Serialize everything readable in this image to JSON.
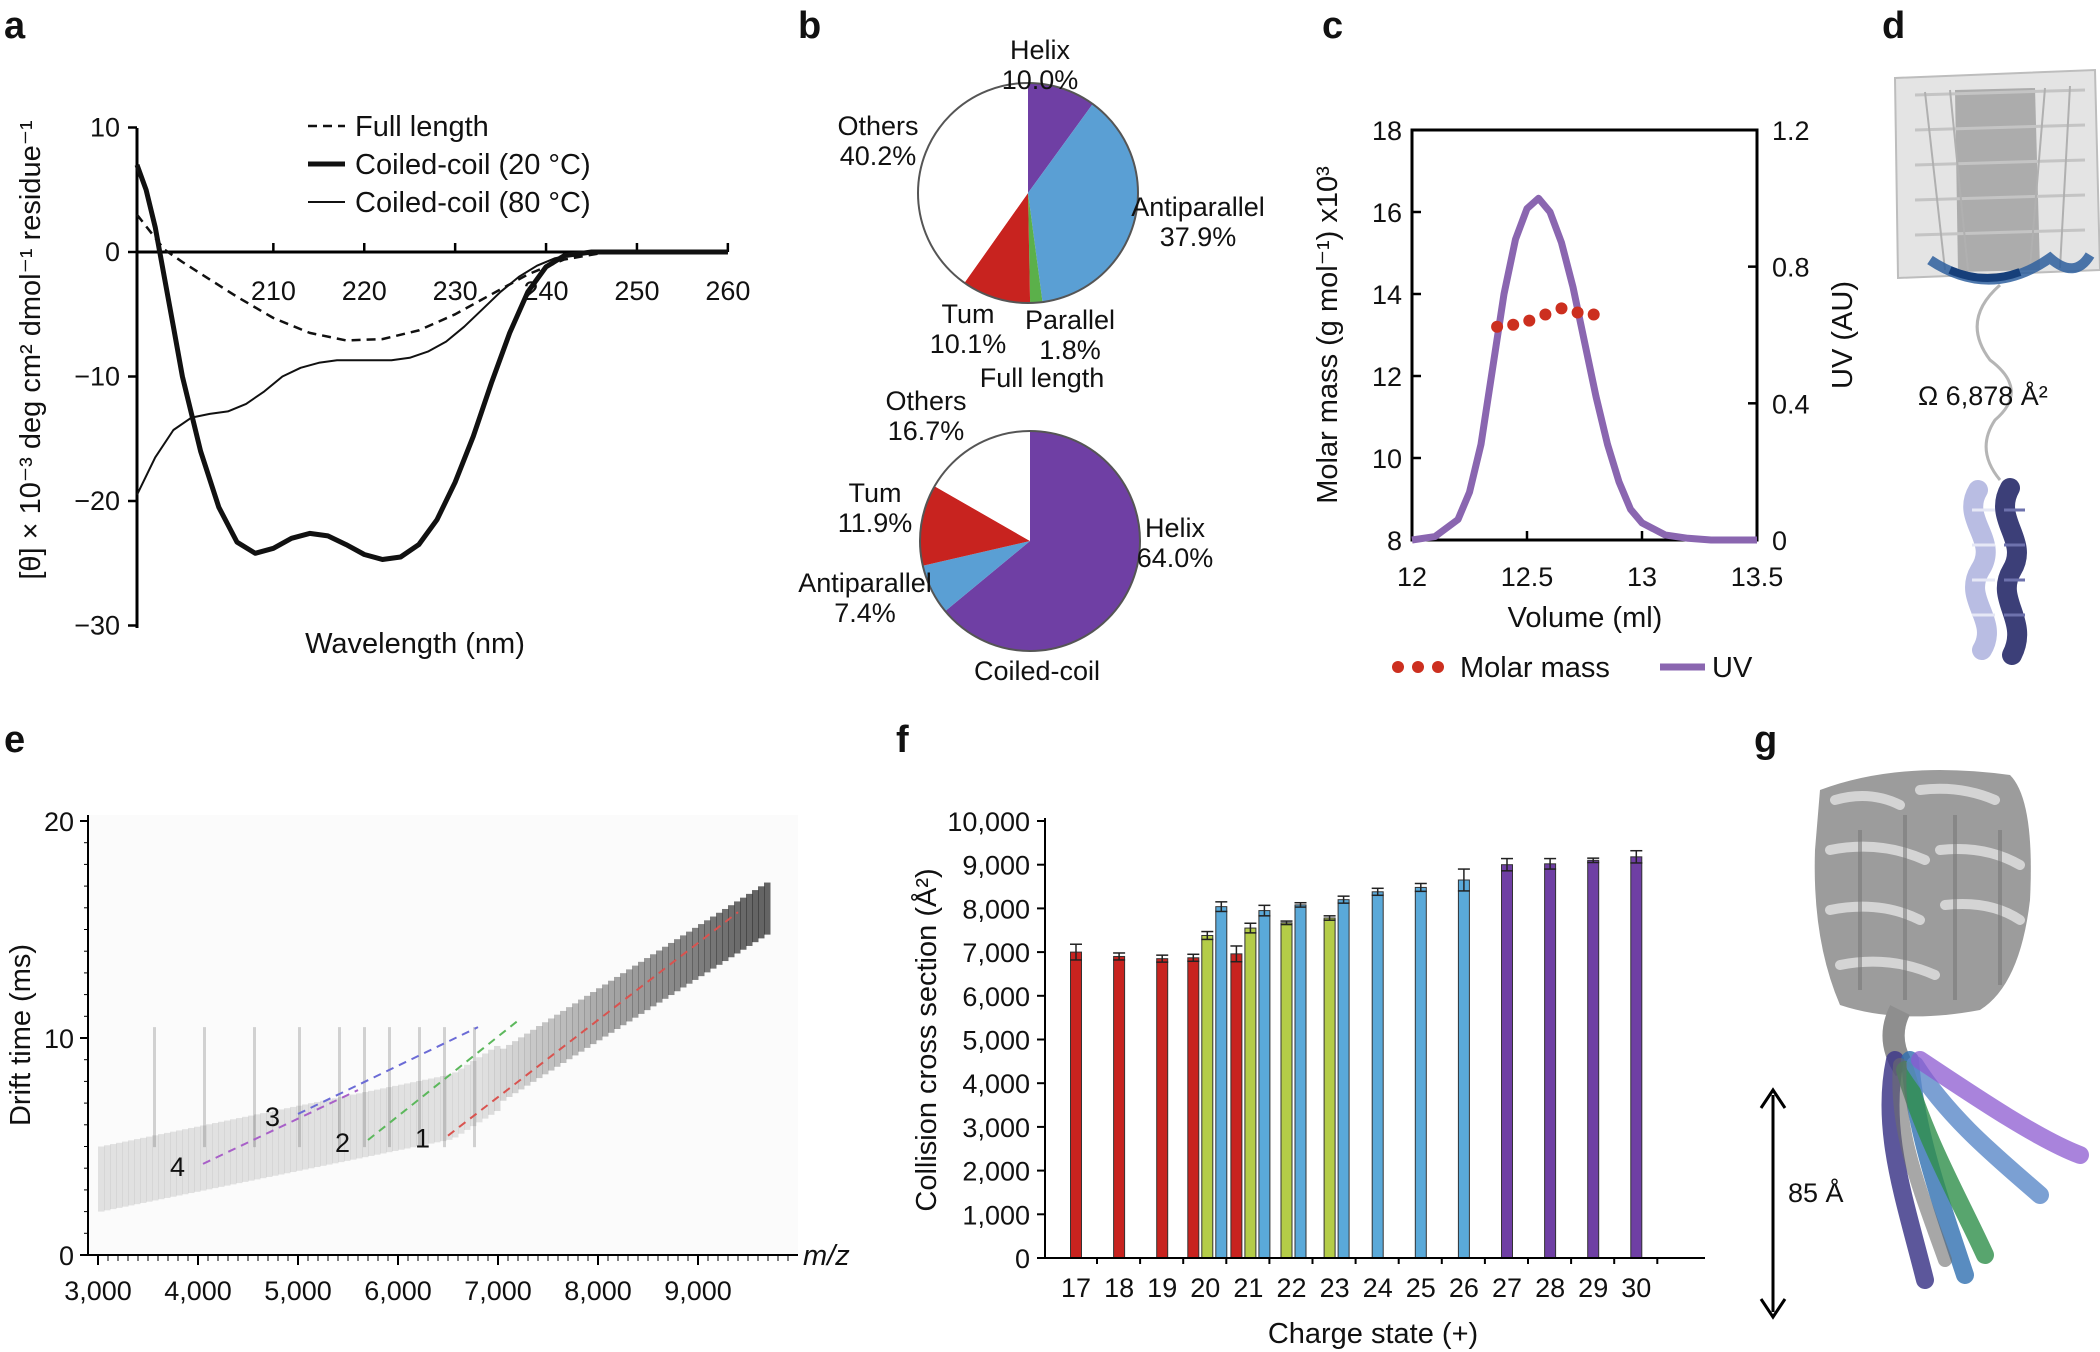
{
  "panels": {
    "a": "a",
    "b": "b",
    "c": "c",
    "d": "d",
    "e": "e",
    "f": "f",
    "g": "g"
  },
  "colors": {
    "helix": "#6f3fa4",
    "antiparallel": "#5a9fd4",
    "parallel": "#5bb04a",
    "turn": "#c8231f",
    "uv": "#8a66b0",
    "molar": "#cc2f1f",
    "lime": "#b4cc48"
  },
  "chart_data": [
    {
      "panel": "a",
      "type": "line",
      "title": "",
      "xlabel": "Wavelength (nm)",
      "ylabel": "[θ] × 10⁻³ deg cm² dmol⁻¹ residue⁻¹",
      "xlim": [
        195,
        260
      ],
      "ylim": [
        -30,
        10
      ],
      "xticks": [
        "210",
        "220",
        "230",
        "240",
        "250",
        "260"
      ],
      "yticks": [
        "10",
        "0",
        "−10",
        "−20",
        "−30"
      ],
      "series": [
        {
          "name": "Full length",
          "style": "dashed",
          "x": [
            195,
            198,
            200,
            203,
            206,
            210,
            214,
            218,
            222,
            226,
            230,
            234,
            238,
            242,
            246,
            250,
            255,
            260
          ],
          "y": [
            3,
            0.2,
            -0.8,
            -2.2,
            -3.6,
            -5.3,
            -6.5,
            -7.1,
            -7.0,
            -6.3,
            -5.0,
            -3.4,
            -1.8,
            -0.6,
            -0.1,
            0,
            0,
            0
          ]
        },
        {
          "name": "Coiled-coil (20 °C)",
          "style": "thick",
          "x": [
            195,
            196,
            197,
            198,
            199,
            200,
            202,
            204,
            206,
            208,
            210,
            212,
            214,
            216,
            218,
            220,
            222,
            224,
            226,
            228,
            230,
            232,
            234,
            236,
            238,
            240,
            242,
            245,
            248,
            252,
            256,
            260
          ],
          "y": [
            7,
            5,
            2,
            -2,
            -6,
            -10,
            -16,
            -20.5,
            -23.3,
            -24.2,
            -23.8,
            -23.0,
            -22.6,
            -22.8,
            -23.5,
            -24.3,
            -24.7,
            -24.5,
            -23.5,
            -21.5,
            -18.5,
            -14.8,
            -10.5,
            -6.5,
            -3.2,
            -1.2,
            -0.3,
            0,
            0,
            0,
            0,
            0
          ]
        },
        {
          "name": "Coiled-coil (80 °C)",
          "style": "thin",
          "x": [
            195,
            197,
            199,
            201,
            203,
            205,
            207,
            209,
            211,
            213,
            215,
            217,
            219,
            221,
            223,
            225,
            227,
            229,
            231,
            233,
            235,
            237,
            239,
            241,
            243,
            245,
            248,
            252,
            256,
            260
          ],
          "y": [
            -19.5,
            -16.5,
            -14.3,
            -13.3,
            -13.0,
            -12.8,
            -12.2,
            -11.2,
            -10.0,
            -9.3,
            -8.9,
            -8.7,
            -8.7,
            -8.7,
            -8.7,
            -8.5,
            -8.0,
            -7.2,
            -6.0,
            -4.6,
            -3.2,
            -2.0,
            -1.1,
            -0.5,
            -0.2,
            0,
            0,
            0,
            0,
            0
          ]
        }
      ]
    },
    {
      "panel": "b-top",
      "type": "pie",
      "title": "Full length",
      "slices": [
        {
          "label": "Helix",
          "value": 10.0,
          "pct": "10.0%",
          "color": "#6f3fa4"
        },
        {
          "label": "Antiparallel",
          "value": 37.9,
          "pct": "37.9%",
          "color": "#5a9fd4"
        },
        {
          "label": "Parallel",
          "value": 1.8,
          "pct": "1.8%",
          "color": "#5bb04a"
        },
        {
          "label": "Tum",
          "value": 10.1,
          "pct": "10.1%",
          "color": "#c8231f"
        },
        {
          "label": "Others",
          "value": 40.2,
          "pct": "40.2%",
          "color": "#ffffff"
        }
      ]
    },
    {
      "panel": "b-bottom",
      "type": "pie",
      "title": "Coiled-coil",
      "slices": [
        {
          "label": "Helix",
          "value": 64.0,
          "pct": "64.0%",
          "color": "#6f3fa4"
        },
        {
          "label": "Antiparallel",
          "value": 7.4,
          "pct": "7.4%",
          "color": "#5a9fd4"
        },
        {
          "label": "Tum",
          "value": 11.9,
          "pct": "11.9%",
          "color": "#c8231f"
        },
        {
          "label": "Others",
          "value": 16.7,
          "pct": "16.7%",
          "color": "#ffffff"
        }
      ]
    },
    {
      "panel": "c",
      "type": "line",
      "xlabel": "Volume (ml)",
      "ylabel": "Molar mass (g mol⁻¹) x10³",
      "y2label": "UV (AU)",
      "xlim": [
        12,
        13.5
      ],
      "ylim": [
        8,
        18
      ],
      "y2lim": [
        0,
        1.2
      ],
      "xticks": [
        "12",
        "12.5",
        "13",
        "13.5"
      ],
      "yticks": [
        "8",
        "10",
        "12",
        "14",
        "16",
        "18"
      ],
      "y2ticks": [
        "0",
        "0.4",
        "0.8",
        "1.2"
      ],
      "uv": {
        "name": "UV",
        "x": [
          12.0,
          12.1,
          12.2,
          12.25,
          12.3,
          12.35,
          12.4,
          12.45,
          12.5,
          12.55,
          12.6,
          12.65,
          12.7,
          12.75,
          12.8,
          12.85,
          12.9,
          12.95,
          13.0,
          13.1,
          13.2,
          13.3,
          13.5
        ],
        "y": [
          0.0,
          0.01,
          0.06,
          0.14,
          0.28,
          0.5,
          0.72,
          0.88,
          0.97,
          1.0,
          0.96,
          0.87,
          0.74,
          0.58,
          0.42,
          0.28,
          0.17,
          0.09,
          0.05,
          0.015,
          0.005,
          0.0,
          0.0
        ]
      },
      "molar": {
        "name": "Molar mass",
        "x": [
          12.37,
          12.44,
          12.51,
          12.58,
          12.65,
          12.72,
          12.79
        ],
        "y": [
          13.2,
          13.25,
          13.35,
          13.5,
          13.65,
          13.55,
          13.5
        ]
      }
    },
    {
      "panel": "e",
      "type": "heatmap",
      "xlabel": "m/z",
      "ylabel": "Drift time (ms)",
      "xlim": [
        2900,
        10000
      ],
      "ylim": [
        0,
        20
      ],
      "xticks": [
        "3,000",
        "4,000",
        "5,000",
        "6,000",
        "7,000",
        "8,000",
        "9,000"
      ],
      "yticks": [
        "0",
        "10",
        "20"
      ],
      "lines": [
        {
          "label": "1",
          "color": "#d9534f",
          "x": [
            6500,
            9400
          ],
          "y": [
            5.5,
            15.8
          ]
        },
        {
          "label": "2",
          "color": "#5cb85c",
          "x": [
            5700,
            7200
          ],
          "y": [
            5.3,
            10.8
          ]
        },
        {
          "label": "3",
          "color": "#6b6bd6",
          "x": [
            5000,
            6800
          ],
          "y": [
            6.5,
            10.5
          ]
        },
        {
          "label": "4",
          "color": "#a860c8",
          "x": [
            4050,
            5600
          ],
          "y": [
            4.2,
            7.6
          ]
        }
      ]
    },
    {
      "panel": "f",
      "type": "bar",
      "xlabel": "Charge state (+)",
      "ylabel": "Collision cross section (Å²)",
      "ylim": [
        0,
        10000
      ],
      "yticks": [
        "0",
        "1,000",
        "2,000",
        "3,000",
        "4,000",
        "5,000",
        "6,000",
        "7,000",
        "8,000",
        "9,000",
        "10,000"
      ],
      "categories": [
        "17",
        "18",
        "19",
        "20",
        "21",
        "22",
        "23",
        "24",
        "25",
        "26",
        "27",
        "28",
        "29",
        "30"
      ],
      "bars": [
        {
          "cat": "17",
          "value": 7000,
          "err": 180,
          "color": "#c8231f"
        },
        {
          "cat": "18",
          "value": 6900,
          "err": 80,
          "color": "#c8231f"
        },
        {
          "cat": "19",
          "value": 6850,
          "err": 80,
          "color": "#c8231f"
        },
        {
          "cat": "20",
          "value": 6870,
          "err": 80,
          "color": "#c8231f"
        },
        {
          "cat": "20",
          "value": 7380,
          "err": 90,
          "color": "#b4cc48"
        },
        {
          "cat": "20",
          "value": 8040,
          "err": 110,
          "color": "#5aa9d9"
        },
        {
          "cat": "21",
          "value": 6960,
          "err": 180,
          "color": "#c8231f"
        },
        {
          "cat": "21",
          "value": 7550,
          "err": 110,
          "color": "#b4cc48"
        },
        {
          "cat": "21",
          "value": 7950,
          "err": 120,
          "color": "#5aa9d9"
        },
        {
          "cat": "22",
          "value": 7670,
          "err": 40,
          "color": "#b4cc48"
        },
        {
          "cat": "22",
          "value": 8080,
          "err": 50,
          "color": "#5aa9d9"
        },
        {
          "cat": "23",
          "value": 7780,
          "err": 50,
          "color": "#b4cc48"
        },
        {
          "cat": "23",
          "value": 8200,
          "err": 80,
          "color": "#5aa9d9"
        },
        {
          "cat": "24",
          "value": 8380,
          "err": 80,
          "color": "#5aa9d9"
        },
        {
          "cat": "25",
          "value": 8480,
          "err": 90,
          "color": "#5aa9d9"
        },
        {
          "cat": "26",
          "value": 8650,
          "err": 250,
          "color": "#5aa9d9"
        },
        {
          "cat": "27",
          "value": 9000,
          "err": 140,
          "color": "#6f3fa4"
        },
        {
          "cat": "28",
          "value": 9020,
          "err": 120,
          "color": "#6f3fa4"
        },
        {
          "cat": "29",
          "value": 9100,
          "err": 50,
          "color": "#6f3fa4"
        },
        {
          "cat": "30",
          "value": 9180,
          "err": 140,
          "color": "#6f3fa4"
        }
      ]
    }
  ],
  "annotations": {
    "d_omega": "Ω 6,878 Å²",
    "g_length": "85 Å"
  }
}
